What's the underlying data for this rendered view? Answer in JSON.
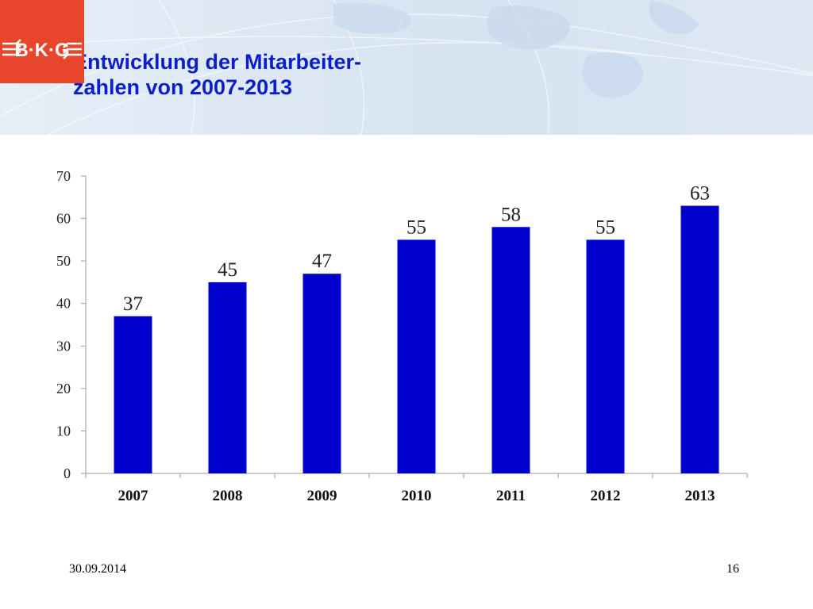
{
  "slide": {
    "title_lines": [
      "Entwicklung der Mitarbeiter-",
      "zahlen von 2007-2013"
    ],
    "logo_text": "B·K·G",
    "date": "30.09.2014",
    "page_number": "16"
  },
  "colors": {
    "title": "#0b1fc8",
    "bar": "#0000cc",
    "logo_bg": "#e8462a",
    "logo_fg": "#ffffff",
    "header_bg": "#dde8f4",
    "axis": "#999999"
  },
  "chart_data": {
    "type": "bar",
    "categories": [
      "2007",
      "2008",
      "2009",
      "2010",
      "2011",
      "2012",
      "2013"
    ],
    "values": [
      37,
      45,
      47,
      55,
      58,
      55,
      63
    ],
    "data_labels": [
      "37",
      "45",
      "47",
      "55",
      "58",
      "55",
      "63"
    ],
    "yticks": [
      0,
      10,
      20,
      30,
      40,
      50,
      60,
      70
    ],
    "ylim": [
      0,
      70
    ],
    "title": "",
    "xlabel": "",
    "ylabel": "",
    "grid": false,
    "legend": "none"
  }
}
